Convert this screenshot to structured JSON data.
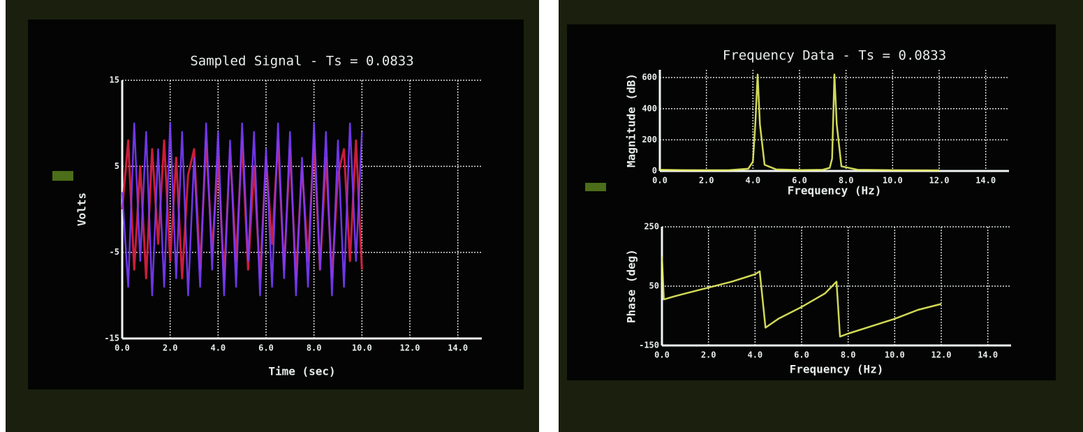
{
  "chart_data": [
    {
      "type": "line",
      "title": "Sampled Signal - Ts = 0.0833",
      "xlabel": "Time (sec)",
      "ylabel": "Volts",
      "x": [
        0,
        0.25,
        0.5,
        0.75,
        1,
        1.25,
        1.5,
        1.75,
        2,
        2.25,
        2.5,
        2.75,
        3,
        3.25,
        3.5,
        3.75,
        4,
        4.25,
        4.5,
        4.75,
        5,
        5.25,
        5.5,
        5.75,
        6,
        6.25,
        6.5,
        6.75,
        7,
        7.25,
        7.5,
        7.75,
        8,
        8.25,
        8.5,
        8.75,
        9,
        9.25,
        9.5,
        9.75,
        10
      ],
      "series": [
        {
          "color": "#e02040",
          "values": [
            0,
            8,
            -7,
            5,
            -8,
            7,
            -4,
            8,
            -6,
            6,
            -8,
            4,
            7,
            -7,
            8,
            -5,
            6,
            -8,
            7,
            -6,
            8,
            -7,
            5,
            -8,
            6,
            -4,
            8,
            -7,
            7,
            -8,
            5,
            -6,
            8,
            -7,
            6,
            -8,
            4,
            7,
            -6,
            8,
            -7
          ]
        },
        {
          "color": "#7a3cff",
          "values": [
            2,
            -9,
            10,
            -6,
            9,
            -10,
            7,
            -9,
            10,
            -8,
            9,
            -10,
            6,
            -9,
            10,
            -7,
            9,
            -10,
            8,
            -9,
            10,
            -6,
            9,
            -10,
            7,
            -9,
            10,
            -8,
            9,
            -10,
            6,
            -9,
            10,
            -7,
            9,
            -10,
            8,
            -9,
            10,
            -6,
            9
          ]
        }
      ],
      "xlim": [
        0,
        15
      ],
      "ylim": [
        -15,
        15
      ],
      "xticks": [
        {
          "value": 0,
          "label": "0.0"
        },
        {
          "value": 2,
          "label": "2.0"
        },
        {
          "value": 4,
          "label": "4.0"
        },
        {
          "value": 6,
          "label": "6.0"
        },
        {
          "value": 8,
          "label": "8.0"
        },
        {
          "value": 10,
          "label": "10.0"
        },
        {
          "value": 12,
          "label": "12.0"
        },
        {
          "value": 14,
          "label": "14.0"
        }
      ],
      "yticks": [
        -15,
        -5,
        5,
        15
      ],
      "grid": true
    },
    {
      "type": "line",
      "title": "Frequency Data - Ts = 0.0833",
      "xlabel": "Frequency (Hz)",
      "ylabel": "Magnitude (dB)",
      "x": [
        0,
        1,
        2,
        3,
        3.8,
        4,
        4.1,
        4.2,
        4.3,
        4.5,
        5,
        6,
        7,
        7.3,
        7.4,
        7.5,
        7.6,
        7.8,
        8.5,
        10,
        12
      ],
      "series": [
        {
          "color": "#e8f060",
          "values": [
            8,
            6,
            5,
            6,
            15,
            60,
            300,
            620,
            300,
            40,
            10,
            6,
            8,
            20,
            80,
            620,
            300,
            30,
            8,
            5,
            4
          ]
        }
      ],
      "xlim": [
        0,
        15
      ],
      "ylim": [
        0,
        650
      ],
      "xticks": [
        {
          "value": 0,
          "label": "0.0"
        },
        {
          "value": 2,
          "label": "2.0"
        },
        {
          "value": 4,
          "label": "4.0"
        },
        {
          "value": 6,
          "label": "6.0"
        },
        {
          "value": 8,
          "label": "8.0"
        },
        {
          "value": 10,
          "label": "10.0"
        },
        {
          "value": 12,
          "label": "12.0"
        },
        {
          "value": 14,
          "label": "14.0"
        }
      ],
      "yticks": [
        0,
        200,
        400,
        600
      ],
      "grid": true
    },
    {
      "type": "line",
      "xlabel": "Frequency (Hz)",
      "ylabel": "Phase (deg)",
      "x": [
        0,
        0.08,
        0.5,
        1,
        2,
        3,
        4,
        4.2,
        4.45,
        5,
        6,
        7,
        7.5,
        7.65,
        8,
        9,
        10,
        11,
        12
      ],
      "series": [
        {
          "color": "#e8f060",
          "values": [
            150,
            5,
            15,
            25,
            45,
            65,
            90,
            100,
            -90,
            -60,
            -20,
            25,
            65,
            -120,
            -110,
            -85,
            -60,
            -30,
            -10
          ]
        }
      ],
      "xlim": [
        0,
        15
      ],
      "ylim": [
        -150,
        250
      ],
      "xticks": [
        {
          "value": 0,
          "label": "0.0"
        },
        {
          "value": 2,
          "label": "2.0"
        },
        {
          "value": 4,
          "label": "4.0"
        },
        {
          "value": 6,
          "label": "6.0"
        },
        {
          "value": 8,
          "label": "8.0"
        },
        {
          "value": 10,
          "label": "10.0"
        },
        {
          "value": 12,
          "label": "12.0"
        },
        {
          "value": 14,
          "label": "14.0"
        }
      ],
      "yticks": [
        -150,
        50,
        250
      ],
      "grid": true
    }
  ]
}
